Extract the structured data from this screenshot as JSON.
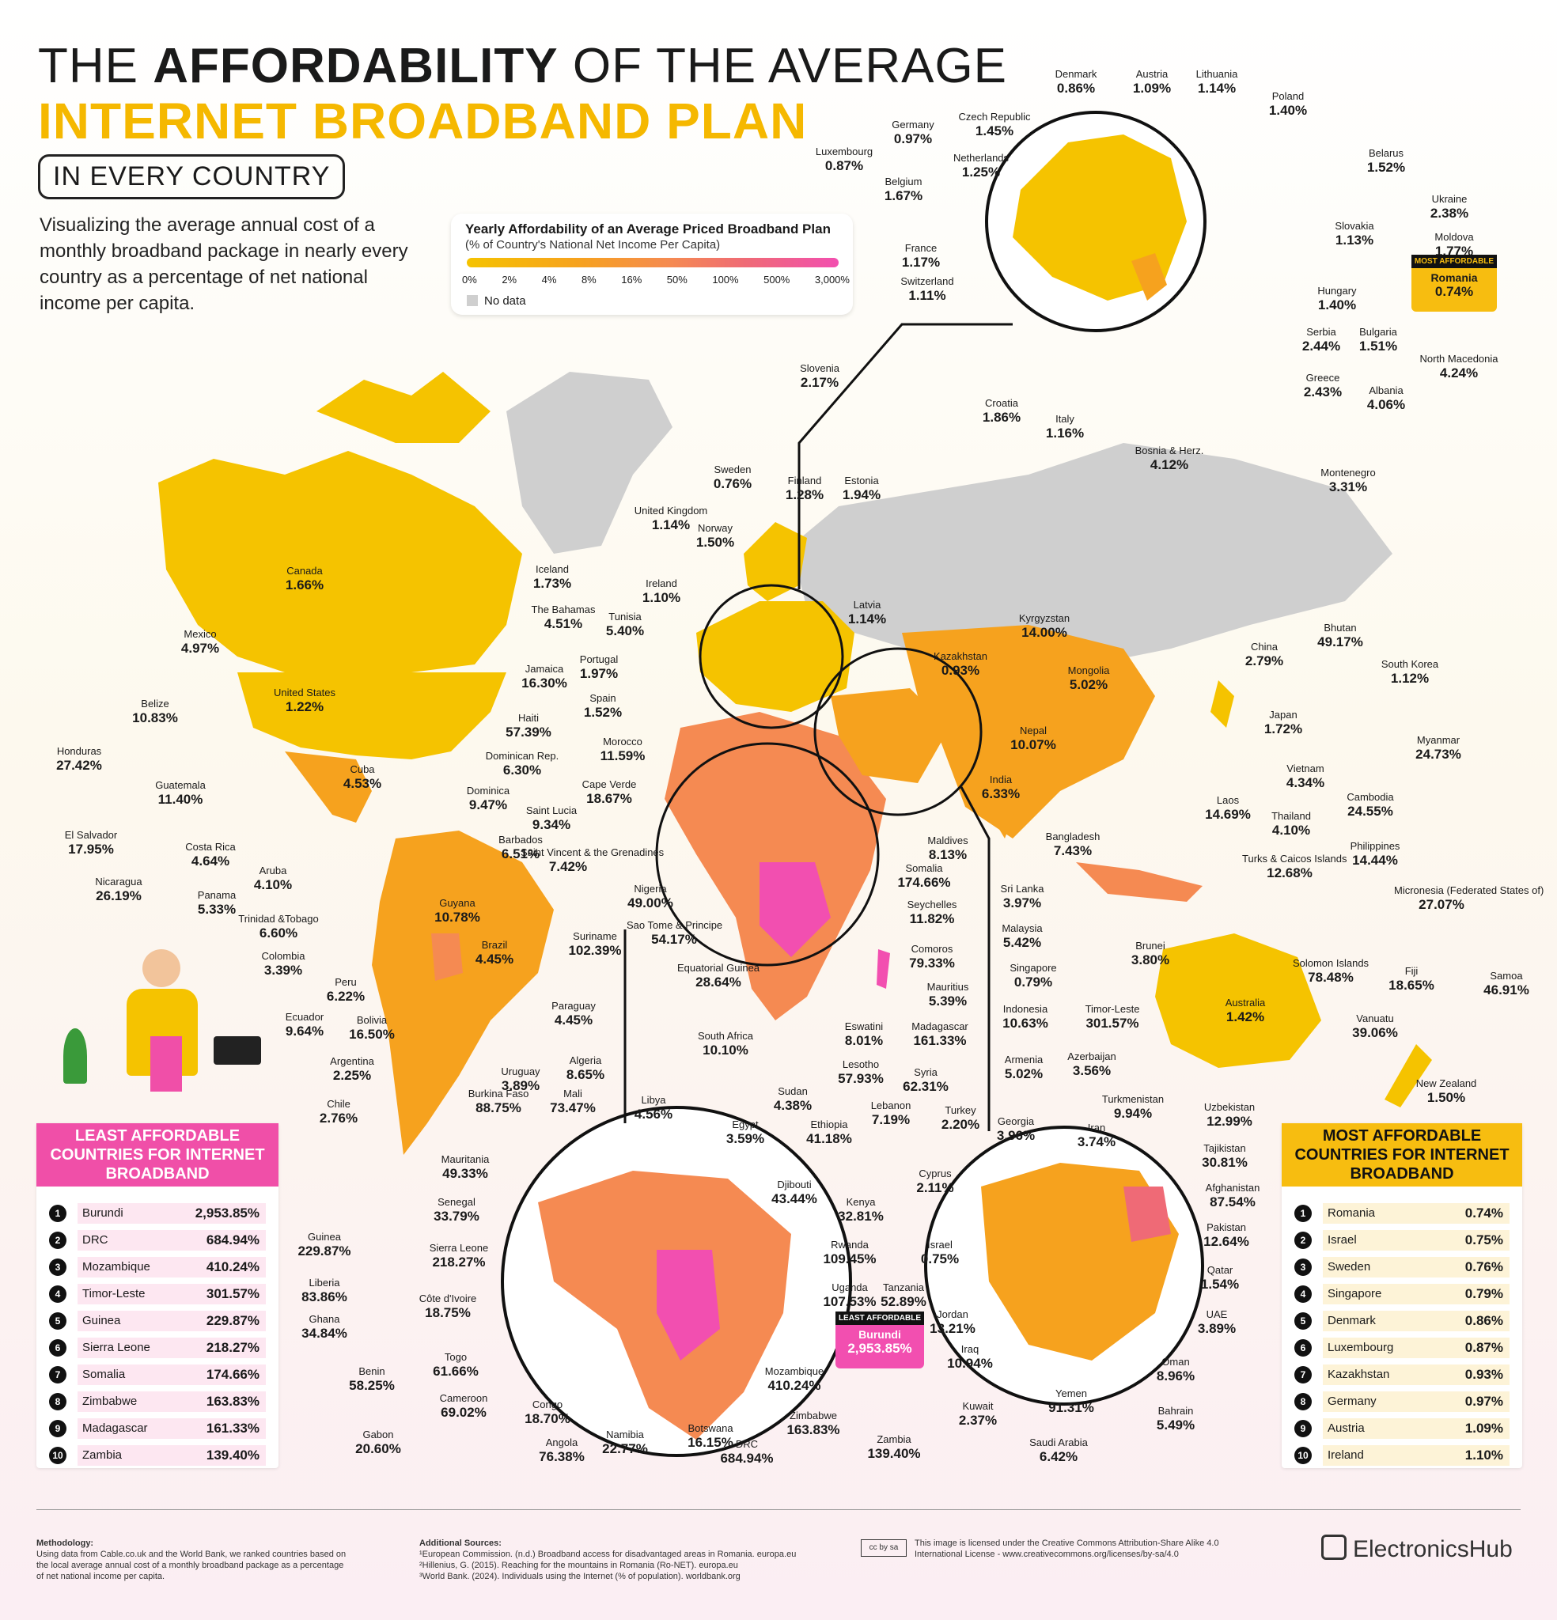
{
  "header": {
    "title_pre": "THE",
    "title_bold": "AFFORDABILITY",
    "title_post": "OF THE AVERAGE",
    "title_line2": "INTERNET BROADBAND PLAN",
    "subtitle": "IN EVERY COUNTRY",
    "intro": "Visualizing the average annual cost of a monthly broadband package in nearly every country as a percentage of net national income per capita."
  },
  "legend": {
    "title": "Yearly Affordability of an Average Priced Broadband Plan",
    "subtitle": "(% of Country's National Net Income Per Capita)",
    "ticks": [
      "0%",
      "2%",
      "4%",
      "8%",
      "16%",
      "50%",
      "100%",
      "500%",
      "3,000%"
    ],
    "no_data": "No data",
    "colors": [
      "#f5c300",
      "#f6a21e",
      "#f58a52",
      "#ef6a76",
      "#f24fb0"
    ],
    "no_data_color": "#cfcfcf"
  },
  "labels": [
    {
      "name": "Canada",
      "value": "1.66%"
    },
    {
      "name": "United States",
      "value": "1.22%"
    },
    {
      "name": "Mexico",
      "value": "4.97%"
    },
    {
      "name": "Belize",
      "value": "10.83%"
    },
    {
      "name": "Honduras",
      "value": "27.42%"
    },
    {
      "name": "Guatemala",
      "value": "11.40%"
    },
    {
      "name": "El Salvador",
      "value": "17.95%"
    },
    {
      "name": "Nicaragua",
      "value": "26.19%"
    },
    {
      "name": "Costa Rica",
      "value": "4.64%"
    },
    {
      "name": "Panama",
      "value": "5.33%"
    },
    {
      "name": "Cuba",
      "value": "4.53%"
    },
    {
      "name": "The Bahamas",
      "value": "4.51%"
    },
    {
      "name": "Jamaica",
      "value": "16.30%"
    },
    {
      "name": "Haiti",
      "value": "57.39%"
    },
    {
      "name": "Dominican Rep.",
      "value": "6.30%"
    },
    {
      "name": "Dominica",
      "value": "9.47%"
    },
    {
      "name": "Saint Lucia",
      "value": "9.34%"
    },
    {
      "name": "Barbados",
      "value": "6.51%"
    },
    {
      "name": "Saint Vincent & the Grenadines",
      "value": "7.42%"
    },
    {
      "name": "Aruba",
      "value": "4.10%"
    },
    {
      "name": "Trinidad &Tobago",
      "value": "6.60%"
    },
    {
      "name": "Colombia",
      "value": "3.39%"
    },
    {
      "name": "Guyana",
      "value": "10.78%"
    },
    {
      "name": "Suriname",
      "value": "102.39%"
    },
    {
      "name": "Brazil",
      "value": "4.45%"
    },
    {
      "name": "Peru",
      "value": "6.22%"
    },
    {
      "name": "Ecuador",
      "value": "9.64%"
    },
    {
      "name": "Bolivia",
      "value": "16.50%"
    },
    {
      "name": "Paraguay",
      "value": "4.45%"
    },
    {
      "name": "Argentina",
      "value": "2.25%"
    },
    {
      "name": "Uruguay",
      "value": "3.89%"
    },
    {
      "name": "Chile",
      "value": "2.76%"
    },
    {
      "name": "Iceland",
      "value": "1.73%"
    },
    {
      "name": "Ireland",
      "value": "1.10%"
    },
    {
      "name": "United Kingdom",
      "value": "1.14%"
    },
    {
      "name": "Sweden",
      "value": "0.76%"
    },
    {
      "name": "Norway",
      "value": "1.50%"
    },
    {
      "name": "Finland",
      "value": "1.28%"
    },
    {
      "name": "Estonia",
      "value": "1.94%"
    },
    {
      "name": "Latvia",
      "value": "1.14%"
    },
    {
      "name": "Tunisia",
      "value": "5.40%"
    },
    {
      "name": "Portugal",
      "value": "1.97%"
    },
    {
      "name": "Spain",
      "value": "1.52%"
    },
    {
      "name": "Morocco",
      "value": "11.59%"
    },
    {
      "name": "Cape Verde",
      "value": "18.67%"
    },
    {
      "name": "Nigeria",
      "value": "49.00%"
    },
    {
      "name": "Sao Tome & Principe",
      "value": "54.17%"
    },
    {
      "name": "Equatorial Guinea",
      "value": "28.64%"
    },
    {
      "name": "South Africa",
      "value": "10.10%"
    },
    {
      "name": "Eswatini",
      "value": "8.01%"
    },
    {
      "name": "Lesotho",
      "value": "57.93%"
    },
    {
      "name": "Madagascar",
      "value": "161.33%"
    },
    {
      "name": "Mauritius",
      "value": "5.39%"
    },
    {
      "name": "Comoros",
      "value": "79.33%"
    },
    {
      "name": "Seychelles",
      "value": "11.82%"
    },
    {
      "name": "Somalia",
      "value": "174.66%"
    },
    {
      "name": "Maldives",
      "value": "8.13%"
    },
    {
      "name": "Kazakhstan",
      "value": "0.93%"
    },
    {
      "name": "Kyrgyzstan",
      "value": "14.00%"
    },
    {
      "name": "Mongolia",
      "value": "5.02%"
    },
    {
      "name": "Nepal",
      "value": "10.07%"
    },
    {
      "name": "India",
      "value": "6.33%"
    },
    {
      "name": "Bangladesh",
      "value": "7.43%"
    },
    {
      "name": "Sri Lanka",
      "value": "3.97%"
    },
    {
      "name": "Malaysia",
      "value": "5.42%"
    },
    {
      "name": "Singapore",
      "value": "0.79%"
    },
    {
      "name": "Indonesia",
      "value": "10.63%"
    },
    {
      "name": "Timor-Leste",
      "value": "301.57%"
    },
    {
      "name": "Brunei",
      "value": "3.80%"
    },
    {
      "name": "Bhutan",
      "value": "49.17%"
    },
    {
      "name": "China",
      "value": "2.79%"
    },
    {
      "name": "South Korea",
      "value": "1.12%"
    },
    {
      "name": "Japan",
      "value": "1.72%"
    },
    {
      "name": "Myanmar",
      "value": "24.73%"
    },
    {
      "name": "Vietnam",
      "value": "4.34%"
    },
    {
      "name": "Laos",
      "value": "14.69%"
    },
    {
      "name": "Thailand",
      "value": "4.10%"
    },
    {
      "name": "Cambodia",
      "value": "24.55%"
    },
    {
      "name": "Philippines",
      "value": "14.44%"
    },
    {
      "name": "Turks & Caicos Islands",
      "value": "12.68%"
    },
    {
      "name": "Micronesia (Federated States of)",
      "value": "27.07%"
    },
    {
      "name": "Solomon Islands",
      "value": "78.48%"
    },
    {
      "name": "Fiji",
      "value": "18.65%"
    },
    {
      "name": "Samoa",
      "value": "46.91%"
    },
    {
      "name": "Vanuatu",
      "value": "39.06%"
    },
    {
      "name": "Australia",
      "value": "1.42%"
    },
    {
      "name": "New Zealand",
      "value": "1.50%"
    },
    {
      "name": "Denmark",
      "value": "0.86%"
    },
    {
      "name": "Austria",
      "value": "1.09%"
    },
    {
      "name": "Lithuania",
      "value": "1.14%"
    },
    {
      "name": "Poland",
      "value": "1.40%"
    },
    {
      "name": "Czech Republic",
      "value": "1.45%"
    },
    {
      "name": "Germany",
      "value": "0.97%"
    },
    {
      "name": "Netherlands",
      "value": "1.25%"
    },
    {
      "name": "Luxembourg",
      "value": "0.87%"
    },
    {
      "name": "Belgium",
      "value": "1.67%"
    },
    {
      "name": "Belarus",
      "value": "1.52%"
    },
    {
      "name": "Ukraine",
      "value": "2.38%"
    },
    {
      "name": "Slovakia",
      "value": "1.13%"
    },
    {
      "name": "Moldova",
      "value": "1.77%"
    },
    {
      "name": "France",
      "value": "1.17%"
    },
    {
      "name": "Switzerland",
      "value": "1.11%"
    },
    {
      "name": "Hungary",
      "value": "1.40%"
    },
    {
      "name": "Serbia",
      "value": "2.44%"
    },
    {
      "name": "Bulgaria",
      "value": "1.51%"
    },
    {
      "name": "North Macedonia",
      "value": "4.24%"
    },
    {
      "name": "Greece",
      "value": "2.43%"
    },
    {
      "name": "Albania",
      "value": "4.06%"
    },
    {
      "name": "Slovenia",
      "value": "2.17%"
    },
    {
      "name": "Croatia",
      "value": "1.86%"
    },
    {
      "name": "Italy",
      "value": "1.16%"
    },
    {
      "name": "Bosnia & Herz.",
      "value": "4.12%"
    },
    {
      "name": "Montenegro",
      "value": "3.31%"
    },
    {
      "name": "Algeria",
      "value": "8.65%"
    },
    {
      "name": "Burkina Faso",
      "value": "88.75%"
    },
    {
      "name": "Mali",
      "value": "73.47%"
    },
    {
      "name": "Libya",
      "value": "4.56%"
    },
    {
      "name": "Sudan",
      "value": "4.38%"
    },
    {
      "name": "Egypt",
      "value": "3.59%"
    },
    {
      "name": "Ethiopia",
      "value": "41.18%"
    },
    {
      "name": "Djibouti",
      "value": "43.44%"
    },
    {
      "name": "Kenya",
      "value": "32.81%"
    },
    {
      "name": "Rwanda",
      "value": "109.45%"
    },
    {
      "name": "Uganda",
      "value": "107.53%"
    },
    {
      "name": "Tanzania",
      "value": "52.89%"
    },
    {
      "name": "Mauritania",
      "value": "49.33%"
    },
    {
      "name": "Senegal",
      "value": "33.79%"
    },
    {
      "name": "Guinea",
      "value": "229.87%"
    },
    {
      "name": "Sierra Leone",
      "value": "218.27%"
    },
    {
      "name": "Liberia",
      "value": "83.86%"
    },
    {
      "name": "Côte d'Ivoire",
      "value": "18.75%"
    },
    {
      "name": "Ghana",
      "value": "34.84%"
    },
    {
      "name": "Togo",
      "value": "61.66%"
    },
    {
      "name": "Benin",
      "value": "58.25%"
    },
    {
      "name": "Cameroon",
      "value": "69.02%"
    },
    {
      "name": "Gabon",
      "value": "20.60%"
    },
    {
      "name": "Congo",
      "value": "18.70%"
    },
    {
      "name": "Angola",
      "value": "76.38%"
    },
    {
      "name": "Namibia",
      "value": "22.77%"
    },
    {
      "name": "Botswana",
      "value": "16.15%"
    },
    {
      "name": "DRC",
      "value": "684.94%"
    },
    {
      "name": "Zimbabwe",
      "value": "163.83%"
    },
    {
      "name": "Mozambique",
      "value": "410.24%"
    },
    {
      "name": "Zambia",
      "value": "139.40%"
    },
    {
      "name": "Syria",
      "value": "62.31%"
    },
    {
      "name": "Lebanon",
      "value": "7.19%"
    },
    {
      "name": "Cyprus",
      "value": "2.11%"
    },
    {
      "name": "Israel",
      "value": "0.75%"
    },
    {
      "name": "Jordan",
      "value": "13.21%"
    },
    {
      "name": "Iraq",
      "value": "10.94%"
    },
    {
      "name": "Kuwait",
      "value": "2.37%"
    },
    {
      "name": "Yemen",
      "value": "91.31%"
    },
    {
      "name": "Saudi Arabia",
      "value": "6.42%"
    },
    {
      "name": "Bahrain",
      "value": "5.49%"
    },
    {
      "name": "Oman",
      "value": "8.96%"
    },
    {
      "name": "UAE",
      "value": "3.89%"
    },
    {
      "name": "Qatar",
      "value": "1.54%"
    },
    {
      "name": "Pakistan",
      "value": "12.64%"
    },
    {
      "name": "Afghanistan",
      "value": "87.54%"
    },
    {
      "name": "Tajikistan",
      "value": "30.81%"
    },
    {
      "name": "Uzbekistan",
      "value": "12.99%"
    },
    {
      "name": "Turkmenistan",
      "value": "9.94%"
    },
    {
      "name": "Iran",
      "value": "3.74%"
    },
    {
      "name": "Azerbaijan",
      "value": "3.56%"
    },
    {
      "name": "Armenia",
      "value": "5.02%"
    },
    {
      "name": "Georgia",
      "value": "3.96%"
    },
    {
      "name": "Turkey",
      "value": "2.20%"
    }
  ],
  "tags": {
    "most_affordable": {
      "title": "MOST AFFORDABLE",
      "name": "Romania",
      "value": "0.74%"
    },
    "least_affordable": {
      "title": "LEAST AFFORDABLE",
      "name": "Burundi",
      "value": "2,953.85%"
    }
  },
  "least_panel": {
    "title": "LEAST AFFORDABLE COUNTRIES FOR INTERNET BROADBAND",
    "rows": [
      {
        "rank": "1",
        "name": "Burundi",
        "value": "2,953.85%"
      },
      {
        "rank": "2",
        "name": "DRC",
        "value": "684.94%"
      },
      {
        "rank": "3",
        "name": "Mozambique",
        "value": "410.24%"
      },
      {
        "rank": "4",
        "name": "Timor-Leste",
        "value": "301.57%"
      },
      {
        "rank": "5",
        "name": "Guinea",
        "value": "229.87%"
      },
      {
        "rank": "6",
        "name": "Sierra Leone",
        "value": "218.27%"
      },
      {
        "rank": "7",
        "name": "Somalia",
        "value": "174.66%"
      },
      {
        "rank": "8",
        "name": "Zimbabwe",
        "value": "163.83%"
      },
      {
        "rank": "9",
        "name": "Madagascar",
        "value": "161.33%"
      },
      {
        "rank": "10",
        "name": "Zambia",
        "value": "139.40%"
      }
    ]
  },
  "most_panel": {
    "title": "MOST AFFORDABLE COUNTRIES FOR INTERNET BROADBAND",
    "rows": [
      {
        "rank": "1",
        "name": "Romania",
        "value": "0.74%"
      },
      {
        "rank": "2",
        "name": "Israel",
        "value": "0.75%"
      },
      {
        "rank": "3",
        "name": "Sweden",
        "value": "0.76%"
      },
      {
        "rank": "4",
        "name": "Singapore",
        "value": "0.79%"
      },
      {
        "rank": "5",
        "name": "Denmark",
        "value": "0.86%"
      },
      {
        "rank": "6",
        "name": "Luxembourg",
        "value": "0.87%"
      },
      {
        "rank": "7",
        "name": "Kazakhstan",
        "value": "0.93%"
      },
      {
        "rank": "8",
        "name": "Germany",
        "value": "0.97%"
      },
      {
        "rank": "9",
        "name": "Austria",
        "value": "1.09%"
      },
      {
        "rank": "10",
        "name": "Ireland",
        "value": "1.10%"
      }
    ]
  },
  "footer": {
    "methodology_title": "Methodology:",
    "methodology": "Using data from Cable.co.uk and the World Bank, we ranked countries based on the local average annual cost of a monthly broadband package as a percentage of net national income per capita.",
    "sources_title": "Additional Sources:",
    "sources": [
      "¹European Commission. (n.d.) Broadband access for disadvantaged areas in Romania. europa.eu",
      "²Hillenius, G. (2015). Reaching for the mountains in Romania (Ro-NET). europa.eu",
      "³World Bank. (2024). Individuals using the Internet (% of population). worldbank.org"
    ],
    "license_badge": "cc by sa",
    "license": "This image is licensed under the Creative Commons Attribution-Share Alike 4.0 International License - www.creativecommons.org/licenses/by-sa/4.0",
    "brand": "ElectronicsHub"
  }
}
